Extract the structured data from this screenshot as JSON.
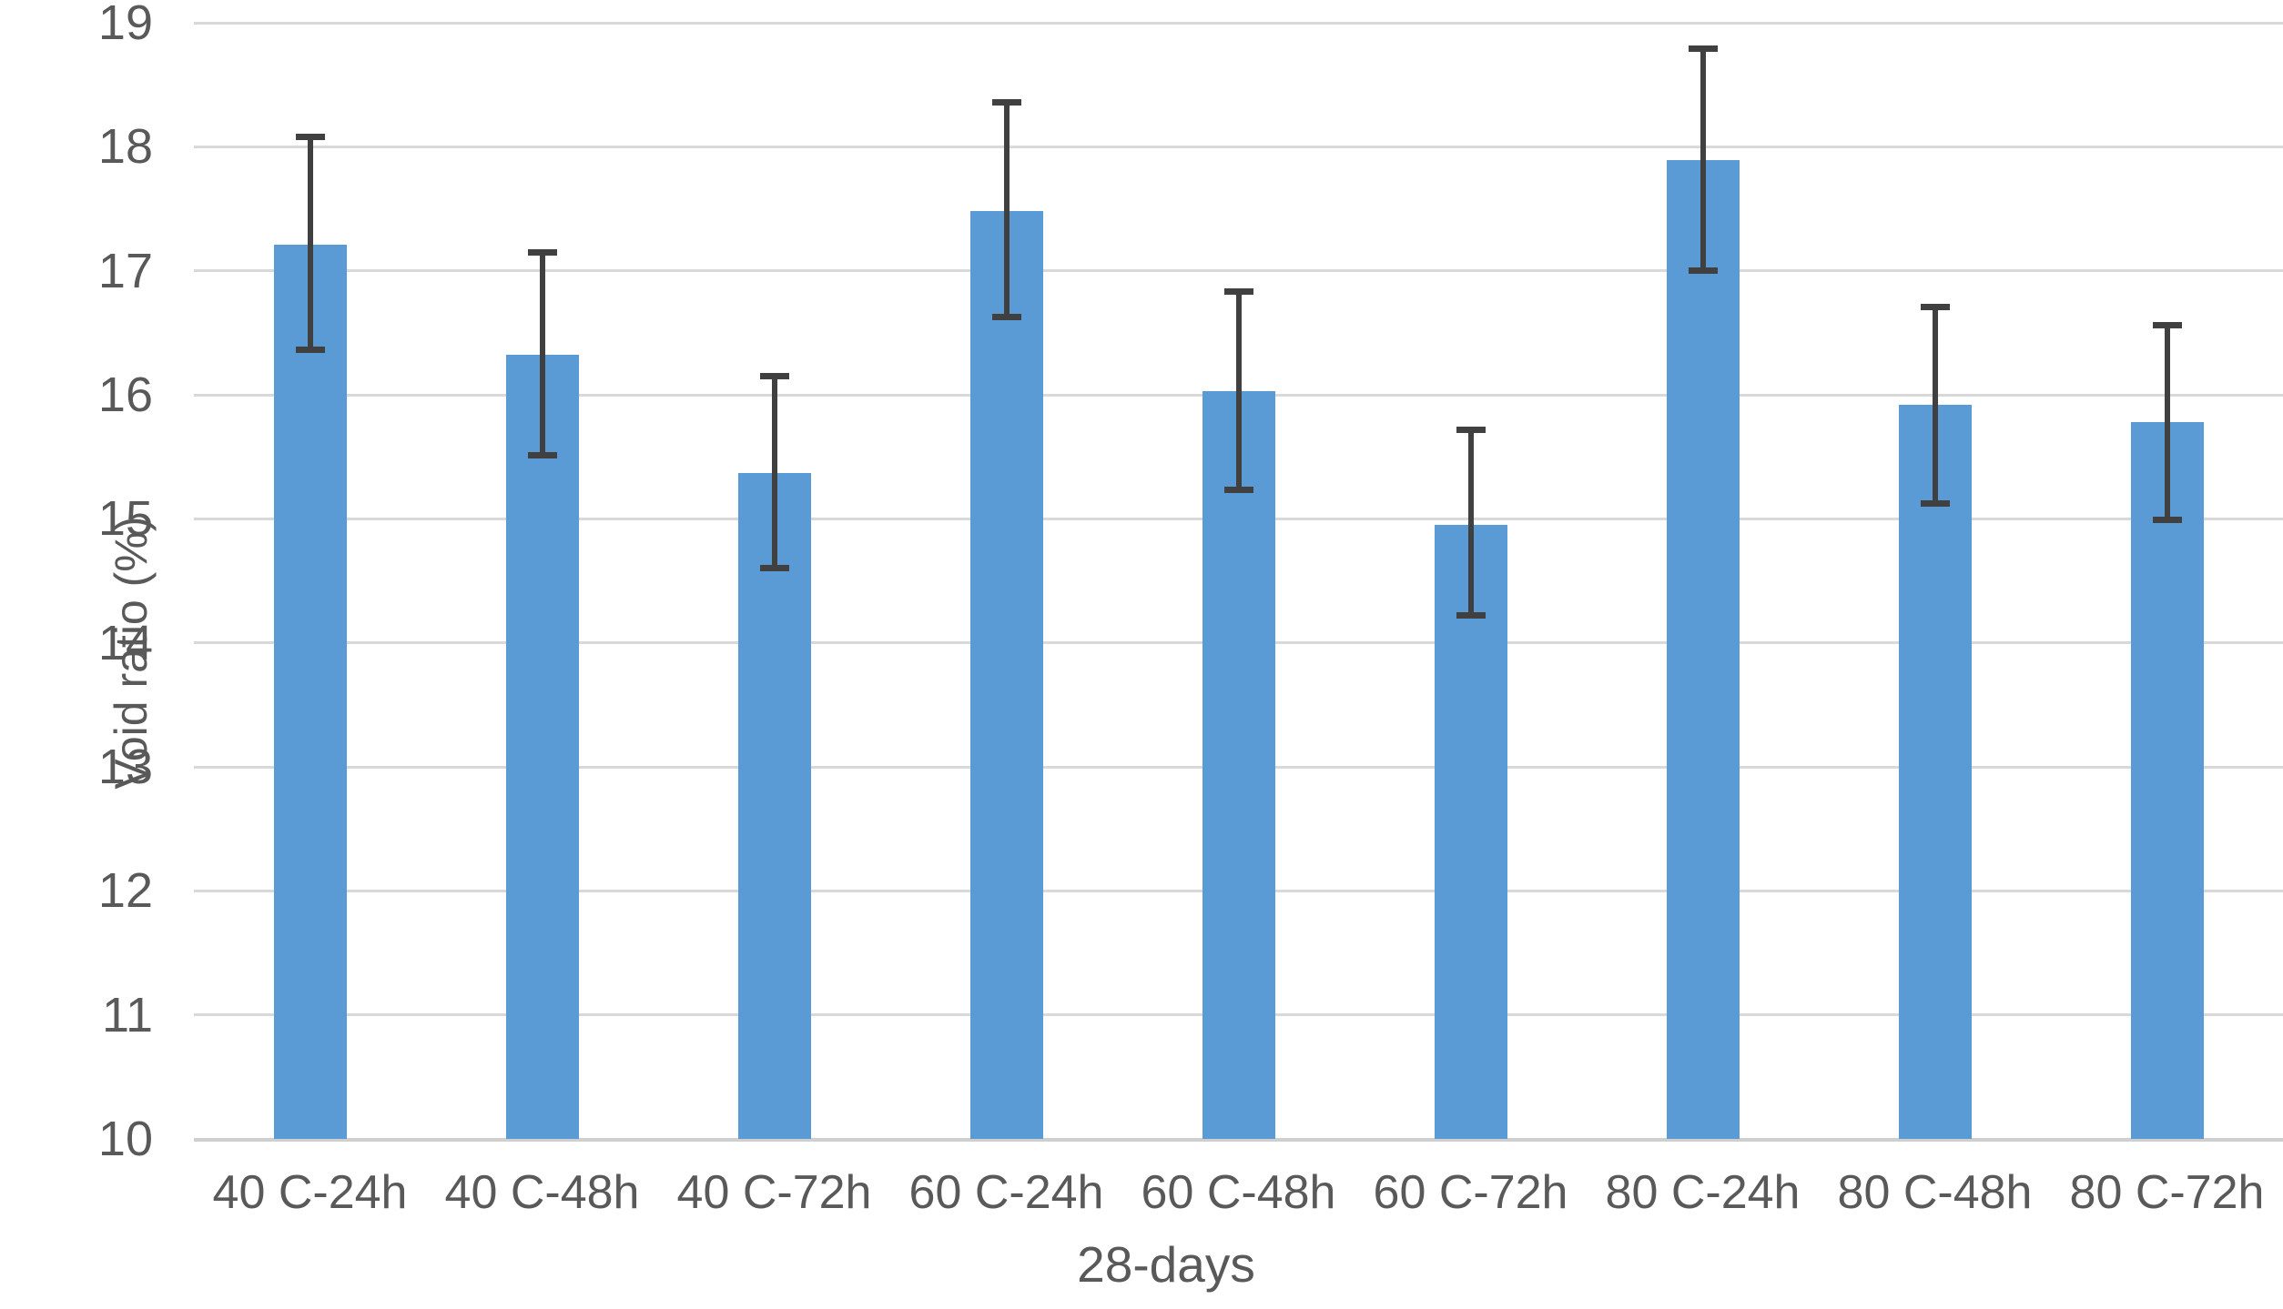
{
  "chart_data": {
    "type": "bar",
    "title": "",
    "xlabel": "28-days",
    "ylabel": "Void ratio (%)",
    "categories": [
      "40 C-24h",
      "40 C-48h",
      "40 C-72h",
      "60 C-24h",
      "60 C-48h",
      "60 C-72h",
      "80 C-24h",
      "80 C-48h",
      "80 C-72h"
    ],
    "values": [
      17.21,
      16.32,
      15.37,
      17.48,
      16.03,
      14.95,
      17.89,
      15.92,
      15.78
    ],
    "error_high": [
      18.08,
      17.15,
      16.15,
      18.36,
      16.83,
      15.72,
      18.79,
      16.71,
      16.56
    ],
    "error_low": [
      16.36,
      15.51,
      14.6,
      16.63,
      15.23,
      14.22,
      17.0,
      15.12,
      14.99
    ],
    "ylim": [
      10,
      19
    ],
    "ytick_step": 1,
    "yticks": [
      "10",
      "11",
      "12",
      "13",
      "14",
      "15",
      "16",
      "17",
      "18",
      "19"
    ],
    "grid": true,
    "legend_position": "none",
    "colors": {
      "bar": "#5B9BD5",
      "error_bar": "#404040",
      "gridline": "#D9D9D9",
      "axis_line": "#CFCFCF",
      "text": "#595959"
    }
  }
}
